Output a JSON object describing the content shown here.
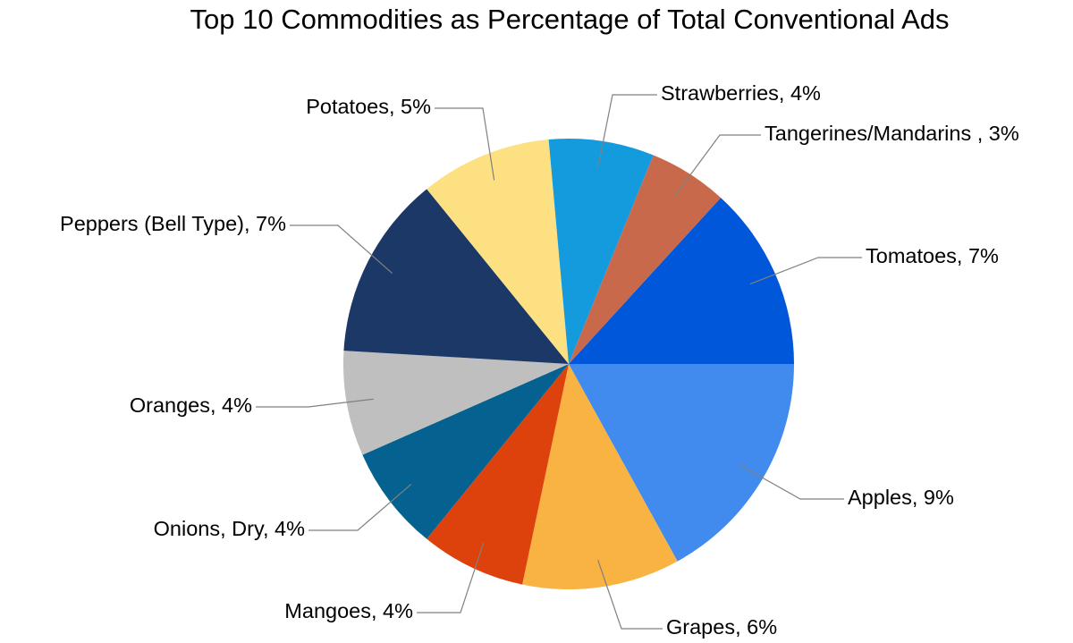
{
  "chart_data": {
    "type": "pie",
    "title": "Top 10 Commodities as Percentage of Total Conventional Ads",
    "slices": [
      {
        "label": "Tomatoes",
        "display": "Tomatoes, 7%",
        "percent": 7,
        "color": "#0057D9"
      },
      {
        "label": "Apples",
        "display": "Apples, 9%",
        "percent": 9,
        "color": "#418BEE"
      },
      {
        "label": "Grapes",
        "display": "Grapes, 6%",
        "percent": 6,
        "color": "#F8B342"
      },
      {
        "label": "Mangoes",
        "display": "Mangoes, 4%",
        "percent": 4,
        "color": "#DE420C"
      },
      {
        "label": "Onions, Dry",
        "display": "Onions, Dry, 4%",
        "percent": 4,
        "color": "#05618F"
      },
      {
        "label": "Oranges",
        "display": "Oranges, 4%",
        "percent": 4,
        "color": "#BFBFBF"
      },
      {
        "label": "Peppers (Bell Type)",
        "display": "Peppers (Bell Type), 7%",
        "percent": 7,
        "color": "#1B3866"
      },
      {
        "label": "Potatoes",
        "display": "Potatoes, 5%",
        "percent": 5,
        "color": "#FDE082"
      },
      {
        "label": "Strawberries",
        "display": "Strawberries, 4%",
        "percent": 4,
        "color": "#139BDE"
      },
      {
        "label": "Tangerines/Mandarins",
        "display": "Tangerines/Mandarins , 3%",
        "percent": 3,
        "color": "#C9694B"
      }
    ]
  }
}
